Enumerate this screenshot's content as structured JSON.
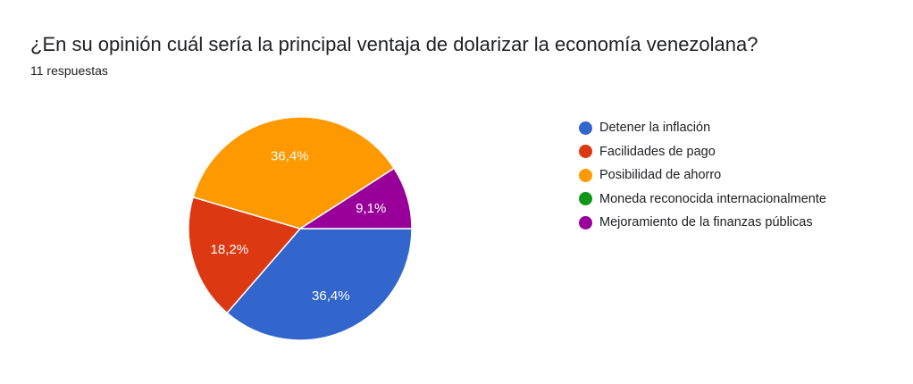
{
  "question": {
    "title": "¿En su opinión cuál sería la principal ventaja de dolarizar la economía venezolana?",
    "responses": "11 respuestas"
  },
  "chart_data": {
    "type": "pie",
    "title": "¿En su opinión cuál sería la principal ventaja de dolarizar la economía venezolana?",
    "total_responses": 11,
    "slices": [
      {
        "label": "Detener la inflación",
        "count": 4,
        "percent_label": "36,4%",
        "color": "#3366cc"
      },
      {
        "label": "Facilidades de pago",
        "count": 2,
        "percent_label": "18,2%",
        "color": "#dc3912"
      },
      {
        "label": "Posibilidad de ahorro",
        "count": 4,
        "percent_label": "36,4%",
        "color": "#ff9900"
      },
      {
        "label": "Moneda reconocida internacionalmente",
        "count": 0,
        "percent_label": "",
        "color": "#109618"
      },
      {
        "label": "Mejoramiento de la finanzas públicas",
        "count": 1,
        "percent_label": "9,1%",
        "color": "#990099"
      }
    ],
    "legend_position": "right"
  }
}
